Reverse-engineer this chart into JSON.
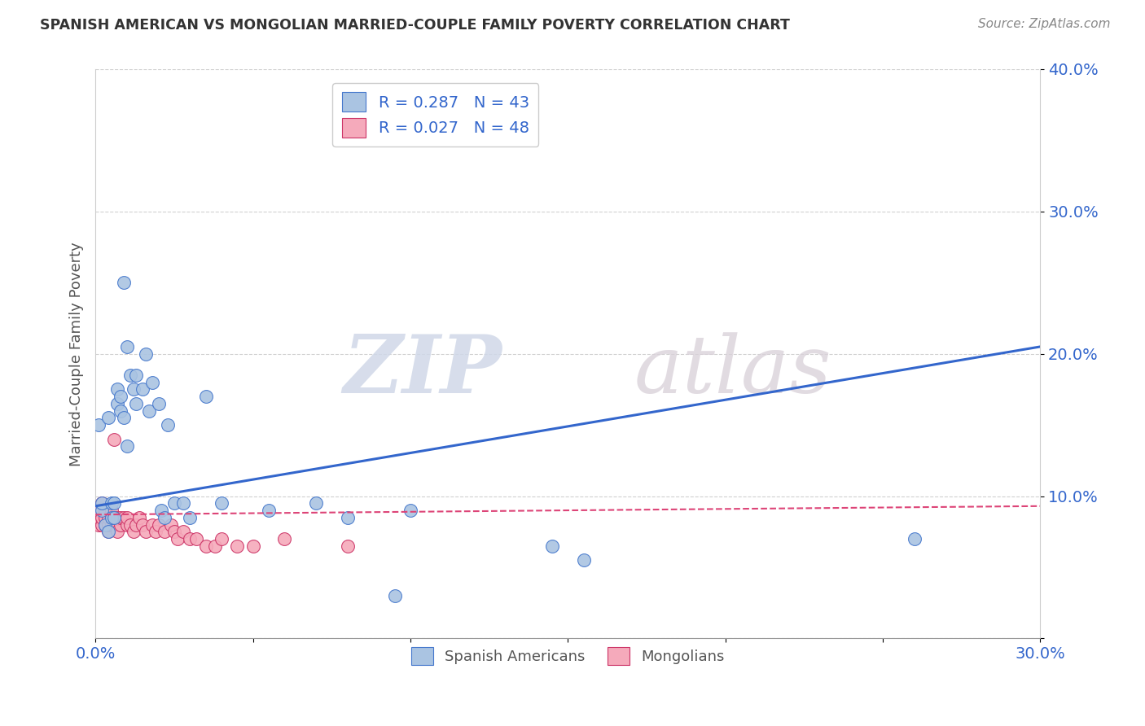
{
  "title": "SPANISH AMERICAN VS MONGOLIAN MARRIED-COUPLE FAMILY POVERTY CORRELATION CHART",
  "source": "Source: ZipAtlas.com",
  "ylabel_label": "Married-Couple Family Poverty",
  "watermark_zip": "ZIP",
  "watermark_atlas": "atlas",
  "xlim": [
    0.0,
    0.3
  ],
  "ylim": [
    0.0,
    0.4
  ],
  "xticks": [
    0.0,
    0.05,
    0.1,
    0.15,
    0.2,
    0.25,
    0.3
  ],
  "yticks": [
    0.0,
    0.1,
    0.2,
    0.3,
    0.4
  ],
  "xtick_labels": [
    "0.0%",
    "",
    "",
    "",
    "",
    "",
    "30.0%"
  ],
  "ytick_labels": [
    "",
    "10.0%",
    "20.0%",
    "30.0%",
    "40.0%"
  ],
  "blue_R": 0.287,
  "blue_N": 43,
  "pink_R": 0.027,
  "pink_N": 48,
  "blue_color": "#aac4e2",
  "pink_color": "#f5aabb",
  "blue_edge_color": "#4477cc",
  "pink_edge_color": "#cc3366",
  "blue_line_color": "#3366cc",
  "pink_line_color": "#dd4477",
  "legend_label_blue": "Spanish Americans",
  "legend_label_pink": "Mongolians",
  "blue_x": [
    0.001,
    0.002,
    0.002,
    0.003,
    0.004,
    0.004,
    0.005,
    0.005,
    0.006,
    0.006,
    0.007,
    0.007,
    0.008,
    0.008,
    0.009,
    0.009,
    0.01,
    0.01,
    0.011,
    0.012,
    0.013,
    0.013,
    0.015,
    0.016,
    0.017,
    0.018,
    0.02,
    0.021,
    0.022,
    0.023,
    0.025,
    0.028,
    0.03,
    0.035,
    0.04,
    0.055,
    0.07,
    0.08,
    0.095,
    0.1,
    0.145,
    0.155,
    0.26
  ],
  "blue_y": [
    0.15,
    0.09,
    0.095,
    0.08,
    0.075,
    0.155,
    0.085,
    0.095,
    0.085,
    0.095,
    0.165,
    0.175,
    0.16,
    0.17,
    0.155,
    0.25,
    0.135,
    0.205,
    0.185,
    0.175,
    0.185,
    0.165,
    0.175,
    0.2,
    0.16,
    0.18,
    0.165,
    0.09,
    0.085,
    0.15,
    0.095,
    0.095,
    0.085,
    0.17,
    0.095,
    0.09,
    0.095,
    0.085,
    0.03,
    0.09,
    0.065,
    0.055,
    0.07
  ],
  "pink_x": [
    0.001,
    0.001,
    0.001,
    0.002,
    0.002,
    0.002,
    0.003,
    0.003,
    0.003,
    0.004,
    0.004,
    0.004,
    0.005,
    0.005,
    0.005,
    0.006,
    0.006,
    0.006,
    0.007,
    0.007,
    0.008,
    0.008,
    0.009,
    0.01,
    0.01,
    0.011,
    0.012,
    0.013,
    0.014,
    0.015,
    0.016,
    0.018,
    0.019,
    0.02,
    0.022,
    0.024,
    0.025,
    0.026,
    0.028,
    0.03,
    0.032,
    0.035,
    0.038,
    0.04,
    0.045,
    0.05,
    0.06,
    0.08
  ],
  "pink_y": [
    0.08,
    0.085,
    0.09,
    0.08,
    0.085,
    0.095,
    0.08,
    0.085,
    0.09,
    0.075,
    0.08,
    0.085,
    0.08,
    0.085,
    0.09,
    0.08,
    0.085,
    0.14,
    0.075,
    0.085,
    0.08,
    0.085,
    0.085,
    0.08,
    0.085,
    0.08,
    0.075,
    0.08,
    0.085,
    0.08,
    0.075,
    0.08,
    0.075,
    0.08,
    0.075,
    0.08,
    0.075,
    0.07,
    0.075,
    0.07,
    0.07,
    0.065,
    0.065,
    0.07,
    0.065,
    0.065,
    0.07,
    0.065
  ],
  "blue_line_x0": 0.0,
  "blue_line_x1": 0.3,
  "blue_line_y0": 0.093,
  "blue_line_y1": 0.205,
  "pink_line_x0": 0.0,
  "pink_line_x1": 0.3,
  "pink_line_y0": 0.087,
  "pink_line_y1": 0.093
}
